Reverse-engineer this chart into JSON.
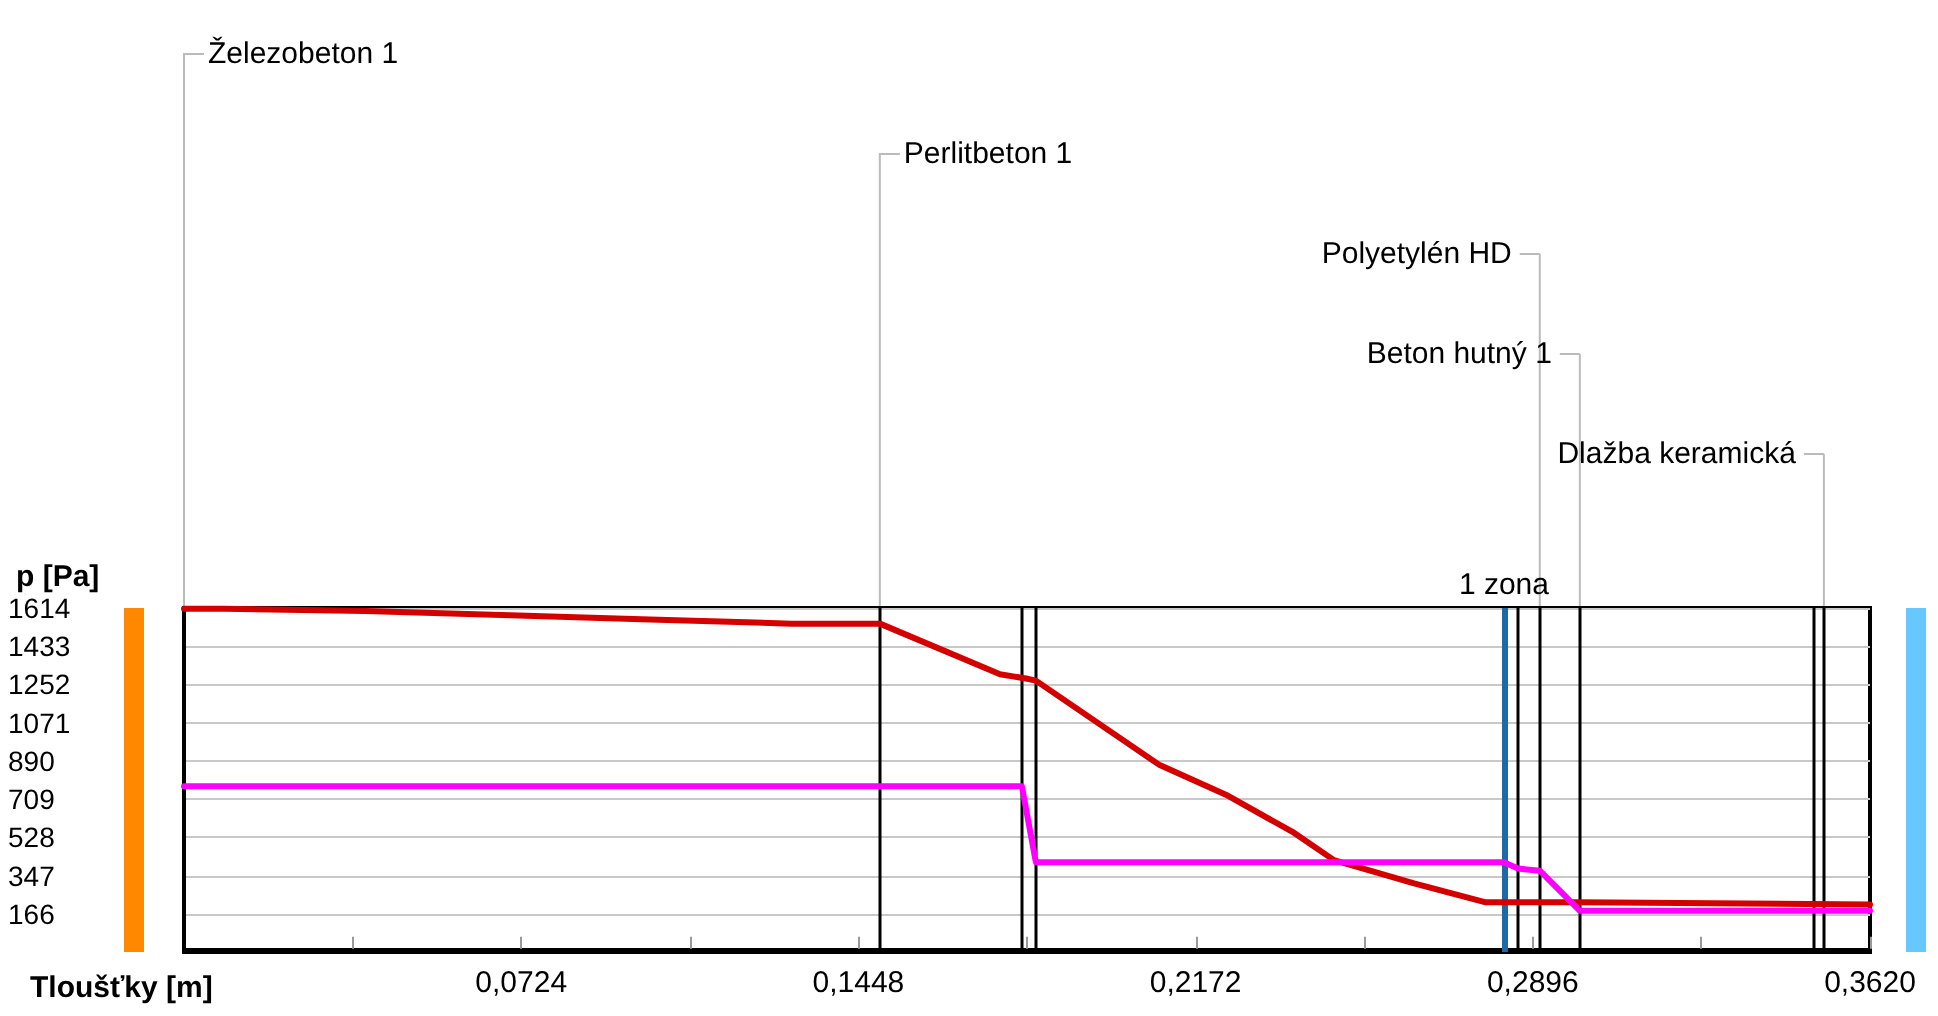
{
  "chart_data": {
    "type": "line",
    "xlabel": "Tloušťky [m]",
    "ylabel": "p [Pa]",
    "xlim": [
      0,
      0.362
    ],
    "ylim": [
      -15,
      1614
    ],
    "xticks": [
      {
        "value": 0.0362,
        "label": null
      },
      {
        "value": 0.0724,
        "label": "0,0724"
      },
      {
        "value": 0.1086,
        "label": null
      },
      {
        "value": 0.1448,
        "label": "0,1448"
      },
      {
        "value": 0.181,
        "label": null
      },
      {
        "value": 0.2172,
        "label": "0,2172"
      },
      {
        "value": 0.2534,
        "label": null
      },
      {
        "value": 0.2896,
        "label": "0,2896"
      },
      {
        "value": 0.3258,
        "label": null
      },
      {
        "value": 0.362,
        "label": "0,3620"
      }
    ],
    "yticks": [
      166,
      347,
      528,
      709,
      890,
      1071,
      1252,
      1433,
      1614
    ],
    "grid": "y",
    "marker": "none",
    "line_style": "solid",
    "series": [
      {
        "color": "#d40000",
        "x": [
          0,
          0.0086,
          0.039,
          0.07,
          0.1,
          0.1305,
          0.1494,
          0.1752,
          0.1808,
          0.1829,
          0.2095,
          0.2237,
          0.2383,
          0.2469,
          0.2641,
          0.2795,
          0.2997,
          0.362
        ],
        "values": [
          1610,
          1610,
          1600,
          1580,
          1560,
          1540,
          1540,
          1300,
          1280,
          1270,
          870,
          730,
          550,
          420,
          310,
          220,
          220,
          210
        ]
      },
      {
        "color": "#ff00ff",
        "x": [
          0,
          0.1799,
          0.1829,
          0.2834,
          0.2864,
          0.2911,
          0.2997,
          0.362
        ],
        "values": [
          770,
          770,
          410,
          410,
          380,
          370,
          180,
          180
        ]
      }
    ],
    "ref_lines": [
      {
        "axis": "x",
        "value": 0,
        "label": "Železobeton 1",
        "color": "#000000"
      },
      {
        "axis": "x",
        "value": 0.1494,
        "label": "Perlitbeton 1",
        "color": "#000000"
      },
      {
        "axis": "x",
        "value": 0.1799,
        "color": "#000000"
      },
      {
        "axis": "x",
        "value": 0.1829,
        "color": "#000000"
      },
      {
        "axis": "x",
        "value": 0.2834,
        "label": "1 zona",
        "color": "#1f6aa5"
      },
      {
        "axis": "x",
        "value": 0.2864,
        "color": "#000000"
      },
      {
        "axis": "x",
        "value": 0.2911,
        "label": "Polyetylén HD",
        "color": "#000000"
      },
      {
        "axis": "x",
        "value": 0.2997,
        "label": "Beton hutný 1",
        "color": "#000000"
      },
      {
        "axis": "x",
        "value": 0.3499,
        "color": "#000000"
      },
      {
        "axis": "x",
        "value": 0.3521,
        "label": "Dlažba keramická",
        "color": "#000000"
      }
    ]
  }
}
